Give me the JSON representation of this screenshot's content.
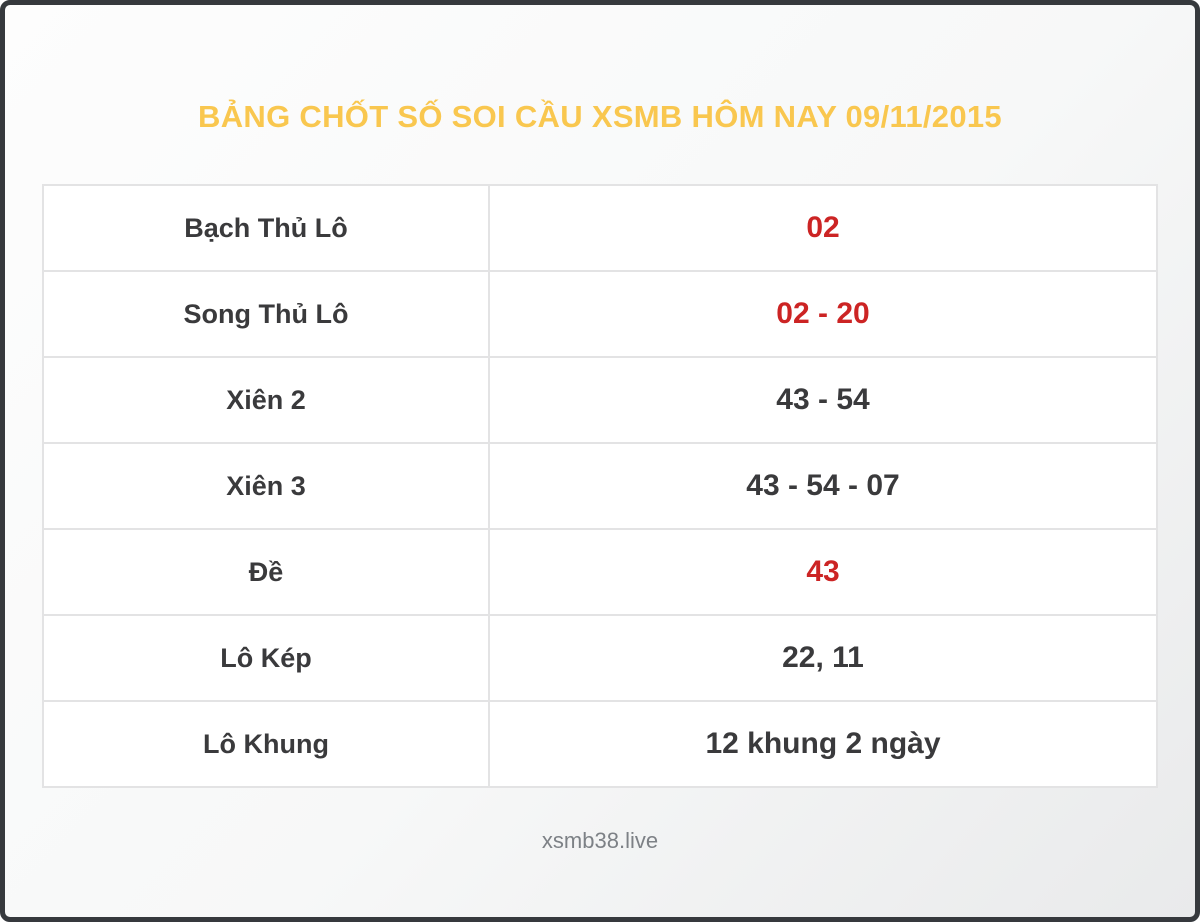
{
  "page": {
    "title": "BẢNG CHỐT SỐ SOI CẦU XSMB HÔM NAY 09/11/2015",
    "footer": "xsmb38.live"
  },
  "colors": {
    "title_yellow": "#f9c74f",
    "value_red": "#cc2424",
    "text_dark": "#3a3a3c",
    "footer_gray": "#7d8186",
    "table_border": "#e3e3e4",
    "frame_border": "#36393d",
    "background_top": "#fdfdfd",
    "background_bottom": "#e9eaeb"
  },
  "table": {
    "rows": [
      {
        "label": "Bạch Thủ Lô",
        "value": "02",
        "highlight": true
      },
      {
        "label": "Song Thủ Lô",
        "value": "02 - 20",
        "highlight": true
      },
      {
        "label": "Xiên 2",
        "value": "43 - 54",
        "highlight": false
      },
      {
        "label": "Xiên 3",
        "value": "43 - 54 - 07",
        "highlight": false
      },
      {
        "label": "Đề",
        "value": "43",
        "highlight": true
      },
      {
        "label": "Lô Kép",
        "value": "22, 11",
        "highlight": false
      },
      {
        "label": "Lô Khung",
        "value": "12 khung 2 ngày",
        "highlight": false
      }
    ]
  }
}
